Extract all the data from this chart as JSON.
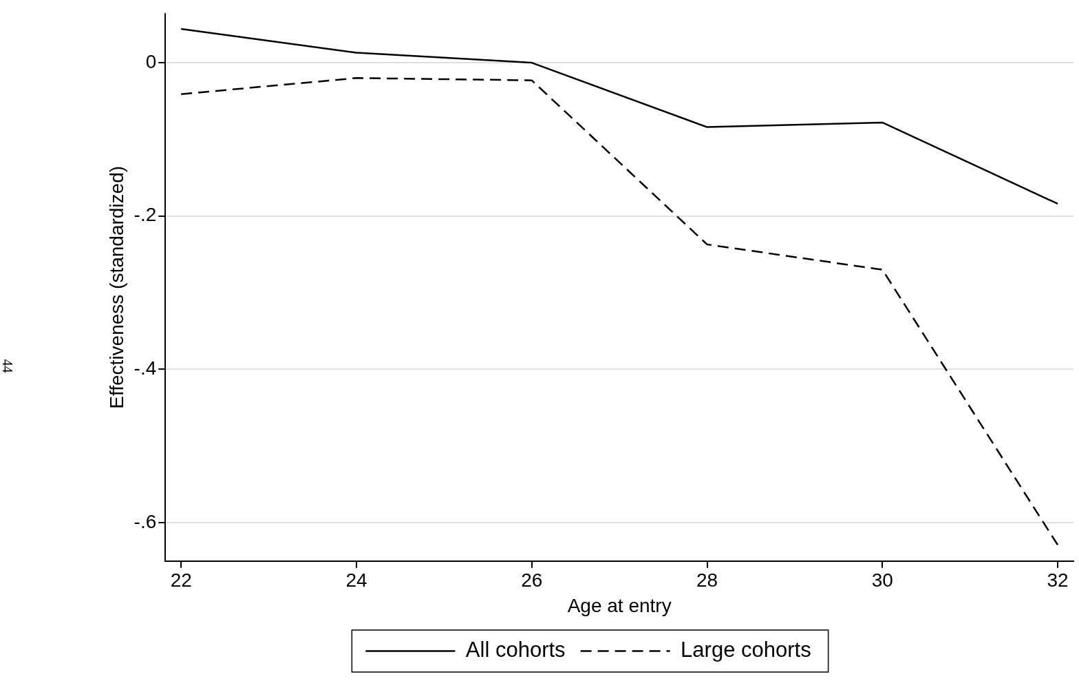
{
  "chart_data": {
    "type": "line",
    "xlabel": "Age at entry",
    "ylabel": "Effectiveness (standardized)",
    "x": [
      22,
      24,
      26,
      28,
      30,
      32
    ],
    "series": [
      {
        "name": "All cohorts",
        "color": "#000000",
        "line_style": "solid",
        "values": [
          0.044,
          0.013,
          0,
          -0.084,
          -0.078,
          -0.184
        ]
      },
      {
        "name": "Large cohorts",
        "color": "#000000",
        "line_style": "dashed",
        "values": [
          -0.041,
          -0.02,
          -0.023,
          -0.237,
          -0.27,
          -0.629
        ]
      }
    ],
    "xlim": [
      21.82,
      32.18
    ],
    "xticks": [
      22,
      24,
      26,
      28,
      30,
      32
    ],
    "ylim": [
      -0.65,
      0.064
    ],
    "yticks": [
      {
        "value": 0,
        "label": "0"
      },
      {
        "value": -0.2,
        "label": "-.2"
      },
      {
        "value": -0.4,
        "label": "-.4"
      },
      {
        "value": -0.6,
        "label": "-.6"
      }
    ],
    "grid": "y",
    "legend": "bottom",
    "marker": "none",
    "annotations": [
      "44"
    ]
  }
}
